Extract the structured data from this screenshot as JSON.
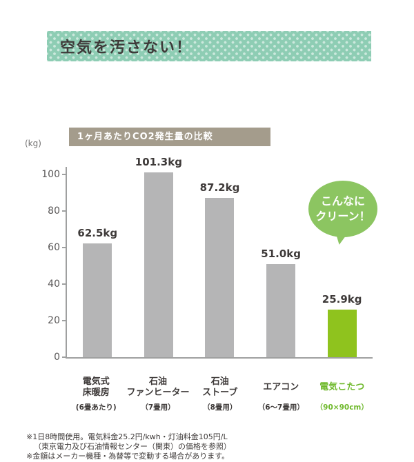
{
  "banner": {
    "title": "空気を汚さない！"
  },
  "chart_data": {
    "type": "bar",
    "title": "1ヶ月あたりCO2発生量の比較",
    "ylabel": "(kg)",
    "xlabel": "",
    "ylim": [
      0,
      105
    ],
    "yticks": [
      0,
      20,
      40,
      60,
      80,
      100
    ],
    "grid": false,
    "legend": false,
    "bars": [
      {
        "category_lines": [
          "電気式",
          "床暖房"
        ],
        "category_sub": "(6畳あたり)",
        "value": 62.5,
        "value_label": "62.5kg",
        "color": "#b5b5b6",
        "text_color": "#3e3a39"
      },
      {
        "category_lines": [
          "石油",
          "ファンヒーター"
        ],
        "category_sub": "（7畳用）",
        "value": 101.3,
        "value_label": "101.3kg",
        "color": "#b5b5b6",
        "text_color": "#3e3a39"
      },
      {
        "category_lines": [
          "石油",
          "ストーブ"
        ],
        "category_sub": "（8畳用）",
        "value": 87.2,
        "value_label": "87.2kg",
        "color": "#b5b5b6",
        "text_color": "#3e3a39"
      },
      {
        "category_lines": [
          "エアコン"
        ],
        "category_sub": "（6〜7畳用）",
        "value": 51.0,
        "value_label": "51.0kg",
        "color": "#b5b5b6",
        "text_color": "#3e3a39"
      },
      {
        "category_lines": [
          "電気こたつ"
        ],
        "category_sub": "（90×90cm）",
        "value": 25.9,
        "value_label": "25.9kg",
        "color": "#8fc31e",
        "text_color": "#6fb92c"
      }
    ],
    "callout": {
      "line1": "こんなに",
      "line2": "クリーン！",
      "color": "#8cc561"
    }
  },
  "footnotes": [
    "※1日8時間使用。電気料金25.2円/kwh・灯油料金105円/L",
    "（東京電力及び石油情報センター（関東）の価格を参照）",
    "※金額はメーカー機種・為替等で変動する場合があります。"
  ],
  "colors": {
    "banner_bg": "#8ecdb4",
    "header_bg": "#a49c8c",
    "axis": "#9fa0a0",
    "bar_gray": "#b5b5b6",
    "bar_green": "#8fc31e",
    "callout_green": "#8cc561"
  }
}
